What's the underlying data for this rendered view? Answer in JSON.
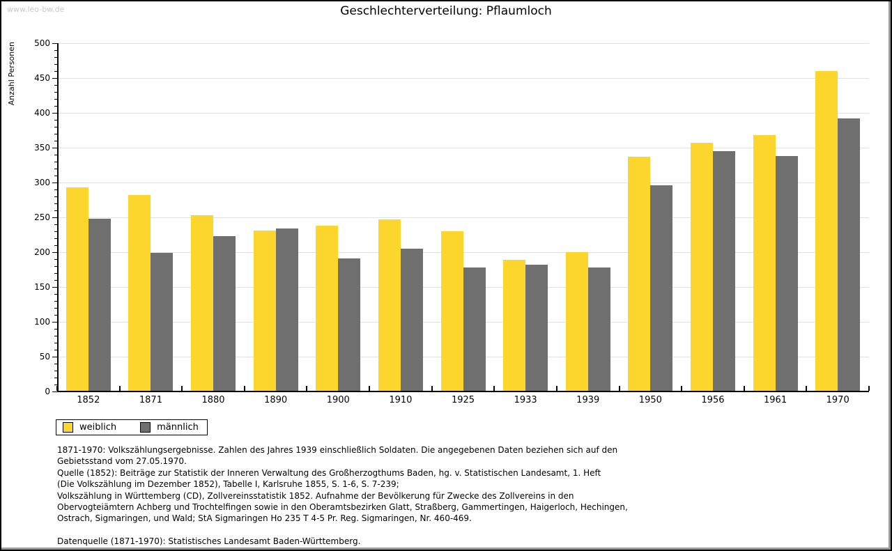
{
  "watermark": "www.leo-bw.de",
  "header": {
    "title": "Geschlechterverteilung: Pflaumloch"
  },
  "chart_data": {
    "type": "bar",
    "title": "Geschlechterverteilung: Pflaumloch",
    "xlabel": "",
    "ylabel": "Anzahl Personen",
    "ylim": [
      0,
      500
    ],
    "ytick_step": 50,
    "ytick_minor_step": 10,
    "grid": true,
    "legend_position": "bottom-left",
    "categories": [
      "1852",
      "1871",
      "1880",
      "1890",
      "1900",
      "1910",
      "1925",
      "1933",
      "1939",
      "1950",
      "1956",
      "1961",
      "1970"
    ],
    "series": [
      {
        "name": "weiblich",
        "color": "#FCD52D",
        "values": [
          293,
          282,
          253,
          231,
          238,
          247,
          230,
          189,
          200,
          337,
          357,
          368,
          460
        ]
      },
      {
        "name": "männlich",
        "color": "#6F6F6F",
        "values": [
          248,
          199,
          223,
          234,
          191,
          205,
          178,
          182,
          178,
          296,
          345,
          338,
          392
        ]
      }
    ]
  },
  "legend": {
    "items": [
      {
        "label": "weiblich",
        "color": "#FCD52D"
      },
      {
        "label": "männlich",
        "color": "#6F6F6F"
      }
    ]
  },
  "footnotes": {
    "lines": [
      "1871-1970: Volkszählungsergebnisse. Zahlen des Jahres 1939 einschließlich Soldaten. Die angegebenen Daten beziehen sich auf den",
      "Gebietsstand vom 27.05.1970.",
      "Quelle (1852): Beiträge zur Statistik der Inneren Verwaltung des Großherzogthums Baden, hg. v. Statistischen Landesamt, 1. Heft",
      "(Die Volkszählung im Dezember 1852), Tabelle I, Karlsruhe 1855, S. 1-6, S. 7-239;",
      "Volkszählung in Württemberg (CD), Zollvereinsstatistik 1852. Aufnahme der Bevölkerung für Zwecke des Zollvereins in den",
      "Obervogteiämtern Achberg und Trochtelfingen sowie in den Oberamtsbezirken Glatt, Straßberg, Gammertingen, Haigerloch, Hechingen,",
      "Ostrach, Sigmaringen, und Wald; StA Sigmaringen Ho 235 T 4-5 Pr. Reg. Sigmaringen, Nr. 460-469."
    ],
    "source_line": "Datenquelle (1871-1970): Statistisches Landesamt Baden-Württemberg."
  },
  "colors": {
    "weiblich": "#FCD52D",
    "maennlich": "#6F6F6F",
    "gridline": "#e2e2e2",
    "axis": "#000000",
    "watermark": "#c9c9c9"
  }
}
